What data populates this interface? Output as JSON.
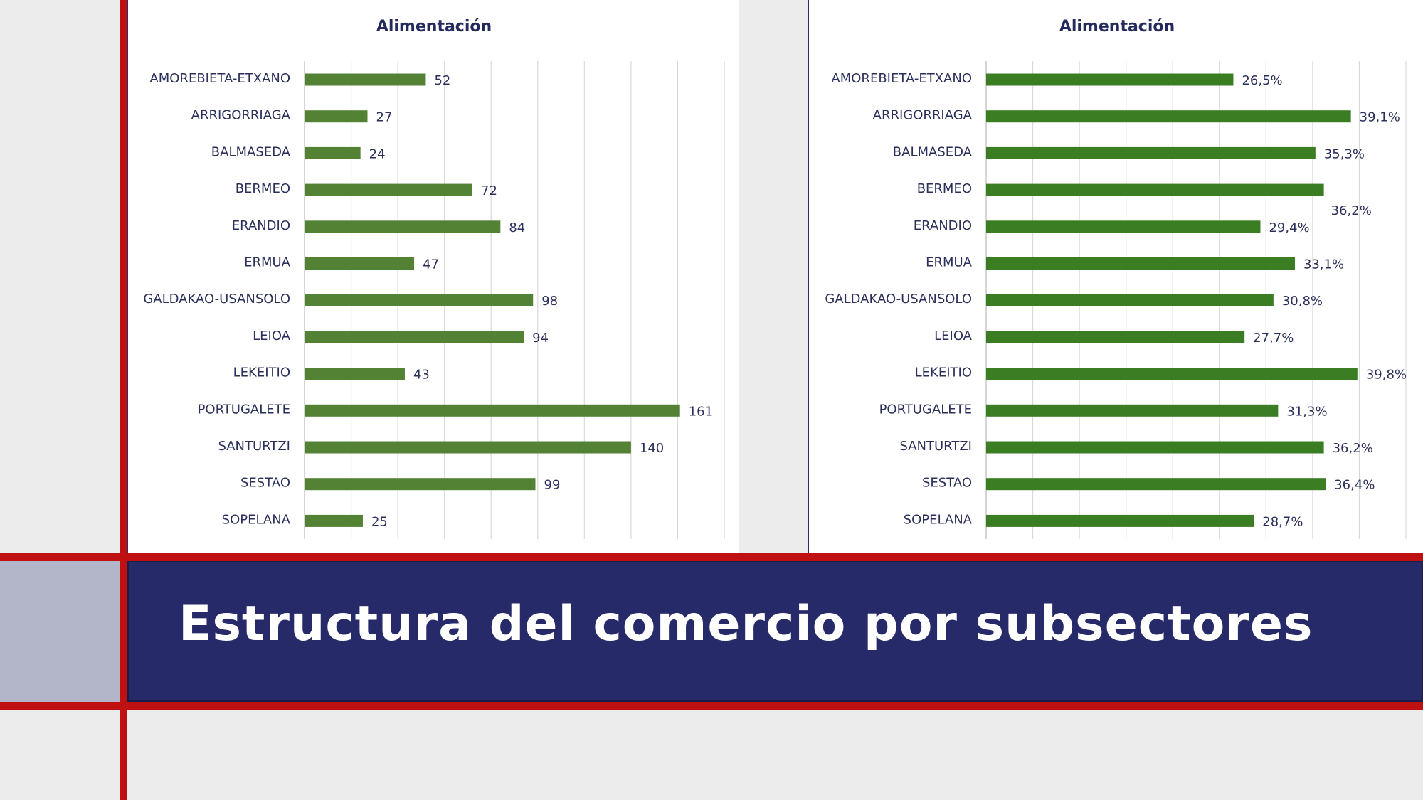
{
  "chart_data": [
    {
      "type": "bar",
      "orientation": "horizontal",
      "title": "Alimentación",
      "categories": [
        "AMOREBIETA-ETXANO",
        "ARRIGORRIAGA",
        "BALMASEDA",
        "BERMEO",
        "ERANDIO",
        "ERMUA",
        "GALDAKAO-USANSOLO",
        "LEIOA",
        "LEKEITIO",
        "PORTUGALETE",
        "SANTURTZI",
        "SESTAO",
        "SOPELANA"
      ],
      "values": [
        52,
        27,
        24,
        72,
        84,
        47,
        98,
        94,
        43,
        161,
        140,
        99,
        25
      ],
      "value_labels": [
        "52",
        "27",
        "24",
        "72",
        "84",
        "47",
        "98",
        "94",
        "43",
        "161",
        "140",
        "99",
        "25"
      ],
      "xlim": [
        0,
        180
      ],
      "grid": true,
      "color": "#548235"
    },
    {
      "type": "bar",
      "orientation": "horizontal",
      "title": "Alimentación",
      "categories": [
        "AMOREBIETA-ETXANO",
        "ARRIGORRIAGA",
        "BALMASEDA",
        "BERMEO",
        "ERANDIO",
        "ERMUA",
        "GALDAKAO-USANSOLO",
        "LEIOA",
        "LEKEITIO",
        "PORTUGALETE",
        "SANTURTZI",
        "SESTAO",
        "SOPELANA"
      ],
      "values": [
        26.5,
        39.1,
        35.3,
        36.2,
        29.4,
        33.1,
        30.8,
        27.7,
        39.8,
        31.3,
        36.2,
        36.4,
        28.7
      ],
      "value_labels": [
        "26,5%",
        "39,1%",
        "35,3%",
        "36,2%",
        "29,4%",
        "33,1%",
        "30,8%",
        "27,7%",
        "39,8%",
        "31,3%",
        "36,2%",
        "36,4%",
        "28,7%"
      ],
      "xlim": [
        0,
        45
      ],
      "grid": true,
      "color": "#3a7d22"
    }
  ],
  "slide_title": "Estructura del comercio por subsectores"
}
